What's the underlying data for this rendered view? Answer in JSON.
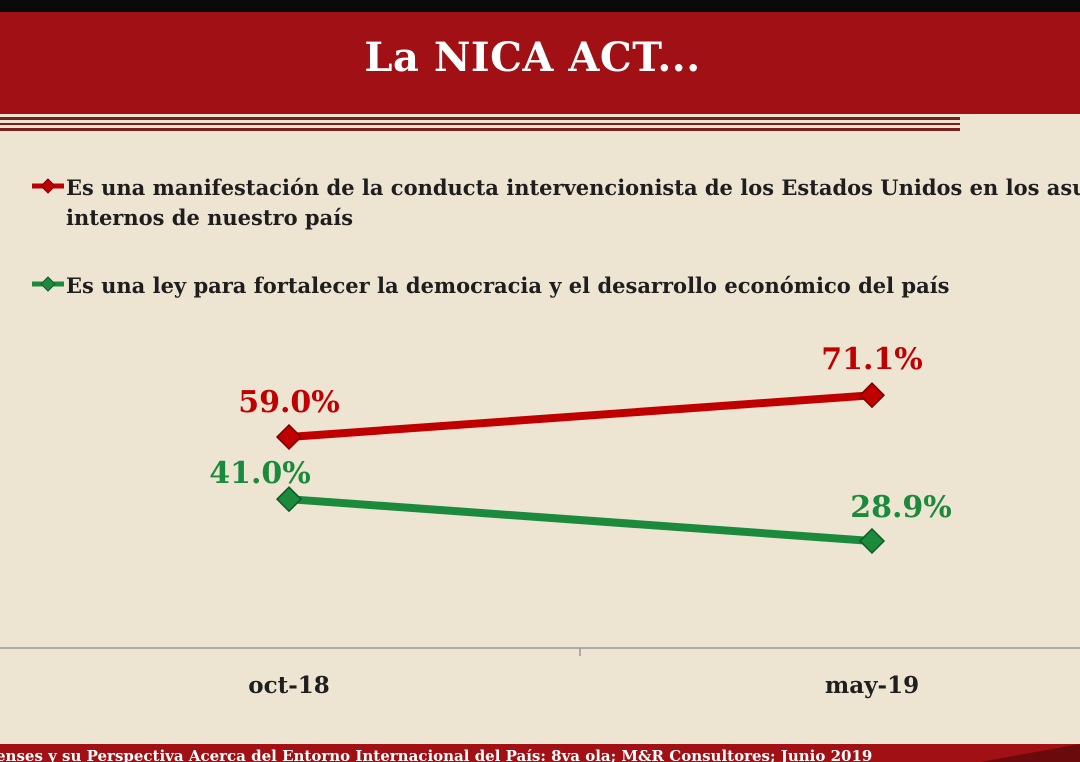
{
  "title": "La NICA ACT...",
  "colors": {
    "header": "#a01014",
    "background": "#ede4d2",
    "series_red": "#c00000",
    "series_green": "#1b8a3c"
  },
  "footer": {
    "text": "enses y su Perspectiva Acerca del Entorno Internacional del País: 8va ola; M&R Consultores; Junio 2019"
  },
  "chart_data": {
    "type": "line",
    "categories": [
      "oct-18",
      "may-19"
    ],
    "legend_position": "top-left",
    "grid": false,
    "ylim": [
      0,
      100
    ],
    "series": [
      {
        "name": "Es una manifestación de la conducta intervencionista de los Estados Unidos en los asuntos internos de nuestro país",
        "name_lines": [
          "Es una manifestación de la conducta intervencionista de los Estados Unidos en los asunt",
          "internos de nuestro país"
        ],
        "color": "#c00000",
        "values": [
          59.0,
          71.1
        ],
        "labels": [
          "59.0%",
          "71.1%"
        ]
      },
      {
        "name": "Es una ley para fortalecer la democracia y el desarrollo económico del país",
        "name_lines": [
          "Es una ley para fortalecer la democracia y el desarrollo económico del país"
        ],
        "color": "#1b8a3c",
        "values": [
          41.0,
          28.9
        ],
        "labels": [
          "41.0%",
          "28.9%"
        ]
      }
    ]
  }
}
